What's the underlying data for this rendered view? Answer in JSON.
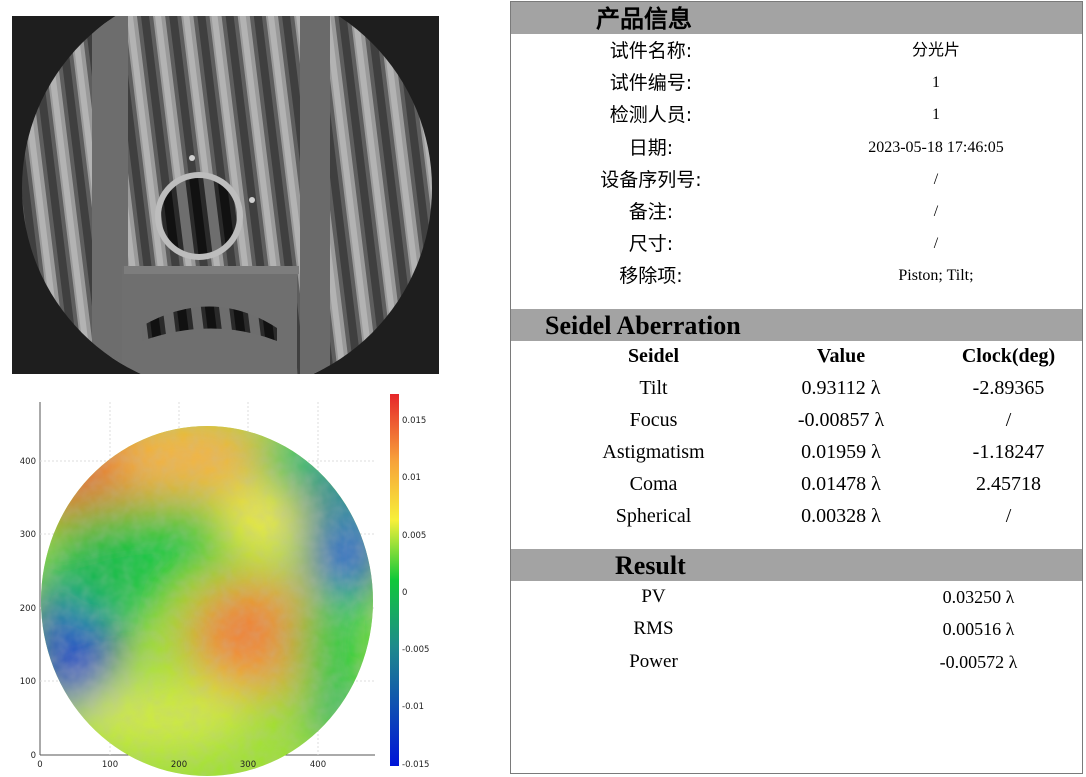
{
  "product_info": {
    "header": "产品信息",
    "rows": [
      {
        "key": "试件名称:",
        "value": "分光片"
      },
      {
        "key": "试件编号:",
        "value": "1"
      },
      {
        "key": "检测人员:",
        "value": "1"
      },
      {
        "key": "日期:",
        "value": "2023-05-18 17:46:05"
      },
      {
        "key": "设备序列号:",
        "value": "/"
      },
      {
        "key": "备注:",
        "value": "/"
      },
      {
        "key": "尺寸:",
        "value": "/"
      },
      {
        "key": "移除项:",
        "value": "Piston; Tilt;"
      }
    ]
  },
  "seidel": {
    "header": "Seidel Aberration",
    "columns": [
      "Seidel",
      "Value",
      "Clock(deg)"
    ],
    "rows": [
      {
        "name": "Tilt",
        "value": "0.93112 λ",
        "clock": "-2.89365"
      },
      {
        "name": "Focus",
        "value": "-0.00857 λ",
        "clock": "/"
      },
      {
        "name": "Astigmatism",
        "value": "0.01959 λ",
        "clock": "-1.18247"
      },
      {
        "name": "Coma",
        "value": "0.01478 λ",
        "clock": "2.45718"
      },
      {
        "name": "Spherical",
        "value": "0.00328 λ",
        "clock": "/"
      }
    ]
  },
  "result": {
    "header": "Result",
    "rows": [
      {
        "key": "PV",
        "value": "0.03250 λ"
      },
      {
        "key": "RMS",
        "value": "0.00516 λ"
      },
      {
        "key": "Power",
        "value": "-0.00572 λ"
      }
    ]
  },
  "surface_map": {
    "x_ticks": [
      "0",
      "100",
      "200",
      "300",
      "400"
    ],
    "y_ticks": [
      "0",
      "100",
      "200",
      "300",
      "400"
    ],
    "colorbar_ticks": [
      "0.015",
      "0.01",
      "0.005",
      "0",
      "-0.005",
      "-0.01",
      "-0.015"
    ],
    "colormap": [
      "#0014d8",
      "#1e8a8c",
      "#10c83a",
      "#9be22a",
      "#f7f03a",
      "#f7a23a",
      "#e6262a"
    ]
  },
  "colors": {
    "section_header": "#a3a3a3",
    "border": "#7a7a7a"
  }
}
